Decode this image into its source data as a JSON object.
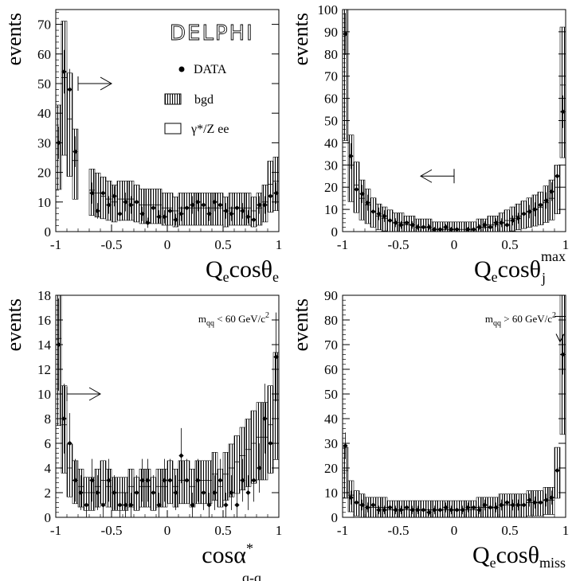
{
  "figure": {
    "experiment_logo": "DELPHI",
    "legend": {
      "data": "DATA",
      "bgd": "bgd",
      "signal": "γ*/Z ee"
    }
  },
  "chart_data": [
    {
      "type": "bar",
      "ylabel": "events",
      "xlabel": {
        "main": "Q",
        "sub1": "e",
        "mid": "cosθ",
        "sub2": "e"
      },
      "xlim": [
        -1,
        1
      ],
      "ylim": [
        0,
        75
      ],
      "yticks": [
        0,
        10,
        20,
        30,
        40,
        50,
        60,
        70
      ],
      "xticks": [
        -1,
        -0.5,
        0,
        0.5,
        1
      ],
      "bins": 40,
      "cut_arrow": {
        "x": -0.8,
        "direction": "right",
        "y": 50
      },
      "series": [
        {
          "name": "bgd",
          "values": [
            30,
            51,
            38,
            24,
            0,
            0,
            14,
            13,
            12,
            11,
            10,
            11,
            11,
            11,
            10,
            9,
            9,
            9,
            9,
            8,
            8,
            7,
            8,
            8,
            8,
            8,
            8,
            8,
            8,
            8,
            7,
            8,
            8,
            8,
            8,
            7,
            8,
            10,
            16,
            17
          ]
        },
        {
          "name": "γ*/Z ee",
          "values": [
            30,
            52,
            38,
            24,
            0,
            0,
            14,
            13,
            12,
            11,
            10,
            11,
            11,
            11,
            10,
            9,
            9,
            9,
            9,
            8,
            8,
            7,
            8,
            8,
            8,
            8,
            8,
            8,
            8,
            8,
            7,
            8,
            8,
            8,
            8,
            7,
            8,
            10,
            16,
            17
          ]
        },
        {
          "name": "DATA",
          "values": [
            30,
            54,
            48,
            27,
            0,
            0,
            13,
            7,
            13,
            9,
            12,
            6,
            10,
            9,
            10,
            6,
            3,
            8,
            5,
            5,
            7,
            4,
            6,
            8,
            9,
            10,
            9,
            6,
            10,
            9,
            7,
            6,
            8,
            7,
            5,
            4,
            9,
            9,
            12,
            13
          ]
        }
      ]
    },
    {
      "type": "bar",
      "ylabel": "events",
      "xlabel": {
        "main": "Q",
        "sub1": "e",
        "mid": "cosθ",
        "sub2": "j",
        "sup": "max"
      },
      "xlim": [
        -1,
        1
      ],
      "ylim": [
        0,
        100
      ],
      "yticks": [
        0,
        10,
        20,
        30,
        40,
        50,
        60,
        70,
        80,
        90,
        100
      ],
      "xticks": [
        -1,
        -0.5,
        0,
        0.5,
        1
      ],
      "bins": 40,
      "cut_arrow": {
        "x": 0,
        "direction": "left",
        "y": 25
      },
      "series": [
        {
          "name": "bgd",
          "values": [
            80,
            30,
            21,
            15,
            12,
            9,
            7,
            6,
            5,
            4,
            4,
            3,
            3,
            2,
            2,
            2,
            1,
            1,
            1,
            1,
            1,
            1,
            1,
            1,
            2,
            2,
            3,
            3,
            4,
            5,
            6,
            7,
            8,
            9,
            10,
            11,
            13,
            15,
            20,
            66
          ]
        },
        {
          "name": "γ*/Z ee",
          "values": [
            80,
            30,
            21,
            15,
            12,
            9,
            7,
            6,
            5,
            4,
            4,
            3,
            3,
            2,
            2,
            2,
            1,
            1,
            1,
            1,
            1,
            1,
            1,
            1,
            2,
            2,
            3,
            3,
            4,
            5,
            6,
            7,
            8,
            9,
            10,
            11,
            13,
            15,
            20,
            66
          ]
        },
        {
          "name": "DATA",
          "values": [
            89,
            34,
            19,
            17,
            13,
            9,
            8,
            7,
            5,
            4,
            3,
            4,
            3,
            2,
            2,
            2,
            1,
            1,
            2,
            1,
            1,
            0,
            1,
            1,
            2,
            3,
            2,
            4,
            4,
            3,
            5,
            6,
            8,
            9,
            10,
            12,
            14,
            18,
            25,
            54
          ]
        }
      ]
    },
    {
      "type": "bar",
      "ylabel": "events",
      "xlabel": {
        "main": "cosα",
        "sup": "*",
        "sub2": "q-q"
      },
      "cut_label": {
        "prefix": "m",
        "sub": "qq",
        "text": " < 60 GeV/c",
        "sup": "2"
      },
      "xlim": [
        -1,
        1
      ],
      "ylim": [
        0,
        18
      ],
      "yticks": [
        0,
        2,
        4,
        6,
        8,
        10,
        12,
        14,
        16,
        18
      ],
      "xticks": [
        -1,
        -0.5,
        0,
        0.5,
        1
      ],
      "bins": 40,
      "cut_arrow": {
        "x": -0.9,
        "direction": "right",
        "y": 10
      },
      "series": [
        {
          "name": "bgd",
          "values": [
            14.5,
            7.5,
            4,
            3,
            2.5,
            2,
            2,
            2.5,
            3,
            2.5,
            2,
            2,
            2,
            2.5,
            2,
            2.5,
            2.5,
            2,
            2.5,
            2.5,
            3,
            2.5,
            3,
            3,
            2.5,
            3,
            3,
            3,
            3.5,
            2.5,
            3.5,
            4,
            4.5,
            5,
            5.5,
            6,
            6.5,
            6.5,
            7.5,
            9.5
          ]
        },
        {
          "name": "γ*/Z ee",
          "values": [
            14.5,
            7.5,
            4,
            3,
            2.5,
            2,
            2,
            2.5,
            3,
            2.5,
            2,
            2,
            2,
            2.5,
            2,
            2.5,
            2.5,
            2,
            2.5,
            2.5,
            3,
            2.5,
            3,
            3,
            2.5,
            3,
            3,
            3,
            3.5,
            2.5,
            3.5,
            4,
            4.5,
            5,
            5.5,
            6,
            6.5,
            6.5,
            7.5,
            9.5
          ]
        },
        {
          "name": "DATA",
          "values": [
            14,
            8,
            6,
            3,
            2,
            1,
            3,
            2,
            1,
            3,
            2,
            1,
            1,
            1,
            2,
            3,
            3,
            2,
            1,
            3,
            3,
            2,
            5,
            3,
            1,
            3,
            2,
            1,
            2,
            3,
            1,
            2,
            1,
            3,
            2,
            3,
            4,
            8,
            6,
            13
          ]
        }
      ]
    },
    {
      "type": "bar",
      "ylabel": "events",
      "xlabel": {
        "main": "Q",
        "sub1": "e",
        "mid": "cosθ",
        "sub2": "miss"
      },
      "cut_label": {
        "prefix": "m",
        "sub": "qq",
        "text": " > 60 GeV/c",
        "sup": "2"
      },
      "xlim": [
        -1,
        1
      ],
      "ylim": [
        0,
        90
      ],
      "yticks": [
        0,
        10,
        20,
        30,
        40,
        50,
        60,
        70,
        80,
        90
      ],
      "xticks": [
        -1,
        -0.5,
        0,
        0.5,
        1
      ],
      "bins": 40,
      "cut_arrow": {
        "x": 0.95,
        "direction": "down",
        "y": 75
      },
      "series": [
        {
          "name": "bgd",
          "values": [
            19,
            9,
            6,
            5,
            4,
            4,
            4,
            4,
            3,
            3,
            3,
            3,
            3,
            3,
            3,
            3,
            3,
            3,
            3,
            3,
            3,
            3,
            3,
            3,
            4,
            4,
            4,
            4,
            5,
            5,
            5,
            5,
            5,
            6,
            6,
            6,
            7,
            7,
            19,
            66
          ]
        },
        {
          "name": "γ*/Z ee",
          "values": [
            19,
            9,
            6,
            5,
            4,
            4,
            4,
            4,
            3,
            3,
            3,
            3,
            3,
            3,
            3,
            3,
            3,
            3,
            3,
            3,
            3,
            3,
            3,
            3,
            4,
            4,
            4,
            4,
            5,
            5,
            5,
            5,
            5,
            6,
            6,
            6,
            7,
            7,
            19,
            66
          ]
        },
        {
          "name": "DATA",
          "values": [
            29,
            8,
            6,
            5,
            4,
            5,
            3,
            3,
            4,
            3,
            3,
            4,
            3,
            3,
            3,
            2,
            3,
            3,
            4,
            3,
            3,
            3,
            4,
            4,
            3,
            5,
            4,
            4,
            5,
            6,
            5,
            5,
            5,
            7,
            6,
            6,
            7,
            8,
            19,
            66
          ]
        }
      ]
    }
  ]
}
